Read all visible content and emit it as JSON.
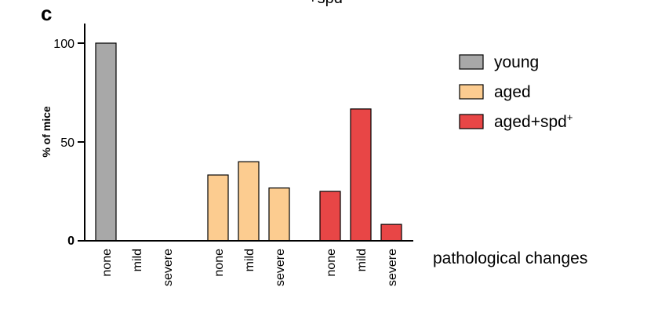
{
  "panel_label": "c",
  "top_fragment": "+spd",
  "chart_data": {
    "type": "bar",
    "ylabel": "% of mice",
    "xlabel": "pathological changes",
    "ylim": [
      0,
      100
    ],
    "yticks": [
      "0",
      "50",
      "100"
    ],
    "categories": [
      "none",
      "mild",
      "severe"
    ],
    "legend_placement": "right",
    "series": [
      {
        "name": "young",
        "color": "#a8a8a8",
        "values": [
          100,
          0,
          0
        ]
      },
      {
        "name": "aged",
        "color": "#fccc90",
        "values": [
          33.3,
          40,
          26.7
        ]
      },
      {
        "name": "aged+spd",
        "superscript": "+",
        "color": "#e84646",
        "values": [
          25,
          66.7,
          8.3
        ]
      }
    ]
  }
}
